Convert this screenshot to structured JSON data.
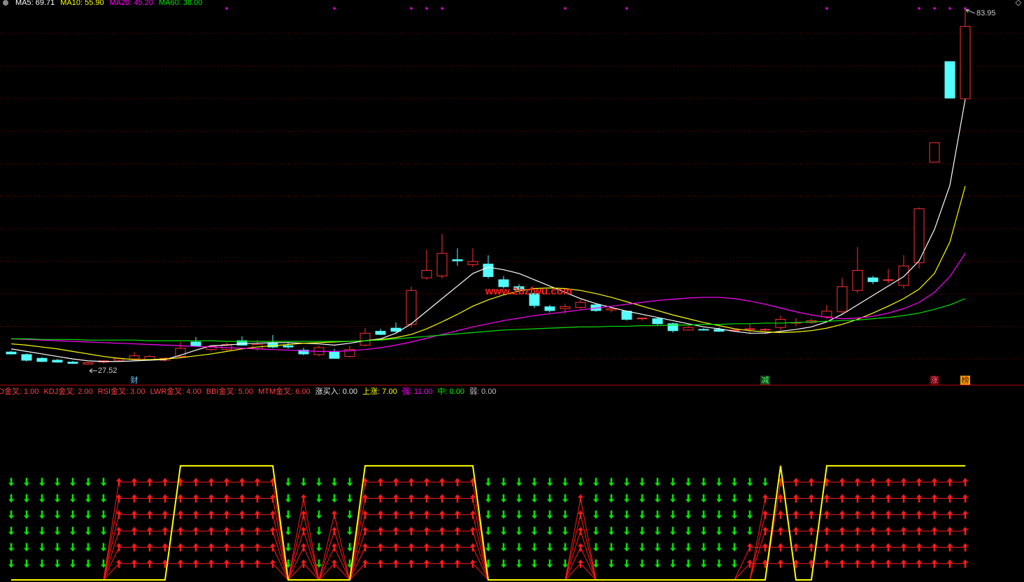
{
  "chart_data": [
    {
      "type": "candlestick",
      "ylim": [
        24.3,
        85.5
      ],
      "grid": true,
      "up_color": "#ff3232",
      "down_color": "#54ffff",
      "open": [
        29.5,
        29.1,
        28.5,
        28.2,
        27.9,
        27.6,
        27.9,
        28.2,
        28.4,
        28.3,
        28.2,
        28.8,
        31.1,
        29.9,
        29.9,
        31.3,
        30.0,
        30.9,
        30.5,
        29.8,
        29.1,
        29.5,
        28.8,
        30.6,
        32.8,
        33.3,
        33.9,
        41.3,
        41.6,
        44.2,
        43.4,
        43.5,
        41.0,
        39.9,
        38.8,
        36.7,
        36.4,
        36.6,
        37.0,
        36.2,
        36.0,
        34.8,
        34.8,
        34.0,
        33.0,
        33.1,
        33.1,
        33.0,
        33.2,
        33.0,
        33.4,
        34.2,
        34.2,
        35.1,
        35.9,
        39.3,
        41.3,
        41.0,
        40.1,
        43.7,
        59.7,
        75.7,
        69.8
      ],
      "high": [
        29.7,
        29.3,
        28.7,
        28.4,
        28.1,
        27.9,
        28.2,
        28.6,
        29.5,
        29.0,
        28.7,
        31.1,
        31.9,
        30.5,
        31.0,
        32.0,
        31.4,
        32.2,
        31.0,
        30.2,
        30.5,
        30.0,
        30.5,
        33.3,
        33.2,
        34.2,
        39.9,
        45.8,
        48.3,
        46.0,
        46.0,
        44.9,
        41.6,
        40.3,
        39.2,
        37.0,
        37.2,
        37.8,
        37.3,
        36.5,
        36.1,
        35.0,
        35.0,
        34.2,
        33.6,
        33.3,
        33.4,
        33.1,
        33.9,
        33.3,
        35.3,
        34.9,
        34.8,
        37.0,
        41.3,
        46.2,
        41.6,
        42.7,
        44.9,
        52.5,
        62.8,
        75.7,
        83.95
      ],
      "low": [
        29.1,
        28.0,
        27.9,
        27.8,
        27.6,
        27.52,
        27.7,
        28.0,
        28.2,
        28.1,
        28.0,
        28.6,
        30.4,
        29.6,
        29.7,
        30.5,
        29.7,
        30.1,
        30.0,
        29.0,
        28.8,
        28.5,
        28.6,
        30.4,
        32.2,
        32.6,
        33.4,
        41.0,
        41.2,
        43.2,
        43.0,
        41.2,
        39.6,
        39.3,
        36.5,
        35.8,
        35.6,
        36.3,
        35.9,
        35.8,
        34.5,
        34.5,
        33.8,
        32.6,
        32.9,
        32.9,
        32.7,
        32.9,
        32.4,
        32.8,
        33.0,
        33.6,
        34.0,
        34.8,
        35.6,
        38.9,
        40.3,
        40.4,
        39.6,
        42.8,
        59.7,
        69.9,
        69.8
      ],
      "close": [
        29.2,
        28.2,
        28.0,
        27.9,
        27.7,
        27.8,
        28.1,
        28.5,
        28.9,
        28.8,
        28.5,
        30.1,
        30.5,
        30.4,
        30.7,
        30.6,
        30.7,
        30.3,
        30.3,
        29.2,
        30.2,
        28.5,
        29.9,
        32.5,
        32.3,
        32.8,
        39.3,
        42.5,
        45.2,
        44.0,
        43.9,
        41.5,
        39.9,
        39.4,
        36.9,
        36.1,
        36.7,
        37.4,
        36.1,
        36.4,
        34.7,
        34.9,
        34.0,
        32.9,
        33.4,
        33.0,
        32.8,
        33.0,
        33.2,
        33.1,
        34.7,
        34.2,
        34.5,
        36.0,
        39.9,
        42.5,
        40.7,
        41.0,
        43.2,
        52.3,
        62.8,
        69.9,
        81.3
      ],
      "series": [
        {
          "name": "MA5",
          "label": "MA5: 69.71",
          "color": "#ffffff",
          "values": [
            30.0,
            29.6,
            29.2,
            28.8,
            28.4,
            28.1,
            28.0,
            28.0,
            28.1,
            28.2,
            28.3,
            29.0,
            29.8,
            30.5,
            30.6,
            30.8,
            30.9,
            31.0,
            31.0,
            30.9,
            30.8,
            30.6,
            30.9,
            31.3,
            31.6,
            32.5,
            34.0,
            36.0,
            38.0,
            40.0,
            42.0,
            43.0,
            42.6,
            42.0,
            41.0,
            40.0,
            39.0,
            38.0,
            37.2,
            36.6,
            36.0,
            35.5,
            35.0,
            34.5,
            34.0,
            33.5,
            33.2,
            32.8,
            32.5,
            32.5,
            32.8,
            33.1,
            33.5,
            34.3,
            35.5,
            37.0,
            38.5,
            40.0,
            41.5,
            44.0,
            49.0,
            56.0,
            69.71
          ]
        },
        {
          "name": "MA10",
          "label": "MA10: 55.90",
          "color": "#ffff00",
          "values": [
            30.8,
            30.6,
            30.3,
            30.0,
            29.6,
            29.2,
            28.8,
            28.5,
            28.3,
            28.3,
            28.4,
            28.6,
            28.9,
            29.2,
            29.6,
            30.0,
            30.3,
            30.5,
            30.7,
            30.9,
            31.0,
            31.1,
            31.2,
            31.3,
            31.5,
            31.8,
            32.3,
            33.2,
            34.3,
            35.5,
            36.8,
            37.8,
            38.6,
            39.2,
            39.6,
            39.7,
            39.6,
            39.3,
            38.8,
            38.2,
            37.5,
            36.8,
            36.1,
            35.4,
            34.8,
            34.2,
            33.7,
            33.2,
            32.9,
            32.7,
            32.6,
            32.7,
            32.9,
            33.3,
            33.9,
            34.7,
            35.7,
            36.8,
            38.0,
            39.5,
            42.0,
            47.0,
            55.9
          ]
        },
        {
          "name": "MA20",
          "label": "MA20: 45.20",
          "color": "#ff00ff",
          "values": [
            31.6,
            31.5,
            31.4,
            31.3,
            31.2,
            31.1,
            31.0,
            30.9,
            30.8,
            30.7,
            30.6,
            30.5,
            30.4,
            30.3,
            30.2,
            30.1,
            30.0,
            29.9,
            29.8,
            29.7,
            29.6,
            29.6,
            29.7,
            29.9,
            30.2,
            30.6,
            31.1,
            31.7,
            32.3,
            32.9,
            33.5,
            34.0,
            34.5,
            34.9,
            35.3,
            35.6,
            35.9,
            36.2,
            36.5,
            36.8,
            37.1,
            37.4,
            37.7,
            37.9,
            38.1,
            38.2,
            38.2,
            38.0,
            37.6,
            37.1,
            36.5,
            35.9,
            35.4,
            35.0,
            34.8,
            34.9,
            35.2,
            35.7,
            36.4,
            37.4,
            39.0,
            41.5,
            45.2
          ]
        },
        {
          "name": "MA60",
          "label": "MA60: 38.00",
          "color": "#00e600",
          "values": [
            31.6,
            31.6,
            31.5,
            31.5,
            31.5,
            31.4,
            31.4,
            31.4,
            31.4,
            31.3,
            31.3,
            31.3,
            31.3,
            31.3,
            31.2,
            31.2,
            31.2,
            31.2,
            31.2,
            31.2,
            31.2,
            31.2,
            31.2,
            31.3,
            31.4,
            31.6,
            31.8,
            32.0,
            32.2,
            32.4,
            32.6,
            32.8,
            33.0,
            33.1,
            33.2,
            33.3,
            33.4,
            33.5,
            33.5,
            33.6,
            33.6,
            33.7,
            33.7,
            33.8,
            33.8,
            33.9,
            33.9,
            34.0,
            34.0,
            34.1,
            34.1,
            34.2,
            34.3,
            34.4,
            34.5,
            34.6,
            34.8,
            35.0,
            35.3,
            35.7,
            36.3,
            37.0,
            38.0
          ]
        }
      ],
      "annotations": [
        {
          "candle": 5,
          "value": 27.52,
          "position": "below"
        },
        {
          "candle": 62,
          "value": 83.95,
          "position": "above"
        }
      ],
      "markers": [
        {
          "candle": 8,
          "label": "财",
          "color": "#66ccff"
        },
        {
          "candle": 49,
          "label": "减",
          "color": "#33ff66",
          "background": "#1a3a1a"
        },
        {
          "candle": 60,
          "label": "涨",
          "color": "#ff6699",
          "background": "#5a0000"
        },
        {
          "candle": 62,
          "label": "榜",
          "color": "#3a1a00",
          "background": "#ff9900"
        }
      ],
      "signal_candles": [
        14,
        21,
        26,
        27,
        28,
        36,
        40,
        53,
        59,
        60,
        61,
        62
      ],
      "signal_color": "#ff00ff",
      "watermark": "www.2bzfwu.com"
    },
    {
      "type": "line",
      "ylim": [
        0,
        11.2
      ],
      "up_color": "#ff1a1a",
      "down_color": "#00e600",
      "legend": [
        {
          "label": "D金叉: 1.00",
          "color": "#ff4040"
        },
        {
          "label": "KDJ金叉: 2.00",
          "color": "#ff4040"
        },
        {
          "label": "RSI金叉: 3.00",
          "color": "#ff4040"
        },
        {
          "label": "LWR金叉: 4.00",
          "color": "#ff4040"
        },
        {
          "label": "BBI金叉: 5.00",
          "color": "#ff4040"
        },
        {
          "label": "MTM金叉: 6.00",
          "color": "#ff4040"
        },
        {
          "label": "涨买入: 0.00",
          "color": "#e8e8e8"
        },
        {
          "label": "上涨: 7.00",
          "color": "#ffff00"
        },
        {
          "label": "强: 11.00",
          "color": "#ff00ff"
        },
        {
          "label": "中: 0.00",
          "color": "#00ff00"
        },
        {
          "label": "弱: 0.00",
          "color": "#c0c0c0"
        }
      ],
      "series": [
        {
          "color": "#ff1a1a",
          "arrows": true,
          "values": [
            0,
            0,
            0,
            0,
            0,
            0,
            0,
            1,
            1,
            1,
            1,
            1,
            1,
            1,
            1,
            1,
            1,
            1,
            0,
            1,
            0,
            1,
            0,
            1,
            1,
            1,
            1,
            1,
            1,
            1,
            1,
            0,
            0,
            0,
            0,
            0,
            0,
            1,
            0,
            0,
            0,
            0,
            0,
            0,
            0,
            0,
            0,
            0,
            1,
            1,
            1,
            1,
            1,
            1,
            1,
            1,
            1,
            1,
            1,
            1,
            1,
            1,
            1
          ]
        },
        {
          "color": "#ff1a1a",
          "arrows": true,
          "values": [
            0,
            0,
            0,
            0,
            0,
            0,
            0,
            2,
            2,
            2,
            2,
            2,
            2,
            2,
            2,
            2,
            2,
            2,
            0,
            2,
            0,
            2,
            0,
            2,
            2,
            2,
            2,
            2,
            2,
            2,
            2,
            0,
            0,
            0,
            0,
            0,
            0,
            2,
            0,
            0,
            0,
            0,
            0,
            0,
            0,
            0,
            0,
            0,
            2,
            2,
            2,
            2,
            2,
            2,
            2,
            2,
            2,
            2,
            2,
            2,
            2,
            2,
            2
          ]
        },
        {
          "color": "#ff1a1a",
          "arrows": true,
          "values": [
            0,
            0,
            0,
            0,
            0,
            0,
            0,
            3,
            3,
            3,
            3,
            3,
            3,
            3,
            3,
            3,
            3,
            3,
            0,
            3,
            0,
            3,
            0,
            3,
            3,
            3,
            3,
            3,
            3,
            3,
            3,
            0,
            0,
            0,
            0,
            0,
            0,
            3,
            0,
            0,
            0,
            0,
            0,
            0,
            0,
            0,
            0,
            0,
            0,
            3,
            3,
            3,
            3,
            3,
            3,
            3,
            3,
            3,
            3,
            3,
            3,
            3,
            3
          ]
        },
        {
          "color": "#ff1a1a",
          "arrows": true,
          "values": [
            0,
            0,
            0,
            0,
            0,
            0,
            0,
            4,
            4,
            4,
            4,
            4,
            4,
            4,
            4,
            4,
            4,
            4,
            0,
            4,
            0,
            4,
            0,
            4,
            4,
            4,
            4,
            4,
            4,
            4,
            4,
            0,
            0,
            0,
            0,
            0,
            0,
            4,
            0,
            0,
            0,
            0,
            0,
            0,
            0,
            0,
            0,
            0,
            0,
            4,
            4,
            4,
            4,
            4,
            4,
            4,
            4,
            4,
            4,
            4,
            4,
            4,
            4
          ]
        },
        {
          "color": "#ff1a1a",
          "arrows": true,
          "values": [
            0,
            0,
            0,
            0,
            0,
            0,
            0,
            5,
            5,
            5,
            5,
            5,
            5,
            5,
            5,
            5,
            5,
            5,
            0,
            5,
            0,
            0,
            0,
            5,
            5,
            5,
            5,
            5,
            5,
            5,
            5,
            0,
            0,
            0,
            0,
            0,
            0,
            5,
            0,
            0,
            0,
            0,
            0,
            0,
            0,
            0,
            0,
            0,
            0,
            5,
            5,
            5,
            5,
            5,
            5,
            5,
            5,
            5,
            5,
            5,
            5,
            5,
            5
          ]
        },
        {
          "color": "#ff1a1a",
          "arrows": true,
          "values": [
            0,
            0,
            0,
            0,
            0,
            0,
            0,
            6,
            6,
            6,
            6,
            6,
            6,
            6,
            6,
            6,
            6,
            6,
            0,
            0,
            0,
            0,
            0,
            6,
            6,
            6,
            6,
            6,
            6,
            6,
            6,
            0,
            0,
            0,
            0,
            0,
            0,
            0,
            0,
            0,
            0,
            0,
            0,
            0,
            0,
            0,
            0,
            0,
            0,
            0,
            6,
            6,
            6,
            6,
            6,
            6,
            6,
            6,
            6,
            6,
            6,
            6,
            6
          ]
        },
        {
          "color": "#ffff00",
          "arrows": false,
          "values": [
            0,
            0,
            0,
            0,
            0,
            0,
            0,
            0,
            0,
            0,
            0,
            7,
            7,
            7,
            7,
            7,
            7,
            7,
            0,
            0,
            0,
            0,
            0,
            7,
            7,
            7,
            7,
            7,
            7,
            7,
            7,
            0,
            0,
            0,
            0,
            0,
            0,
            0,
            0,
            0,
            0,
            0,
            0,
            0,
            0,
            0,
            0,
            0,
            0,
            0,
            7,
            0,
            0,
            7,
            7,
            7,
            7,
            7,
            7,
            7,
            7,
            7,
            7
          ]
        }
      ]
    }
  ]
}
